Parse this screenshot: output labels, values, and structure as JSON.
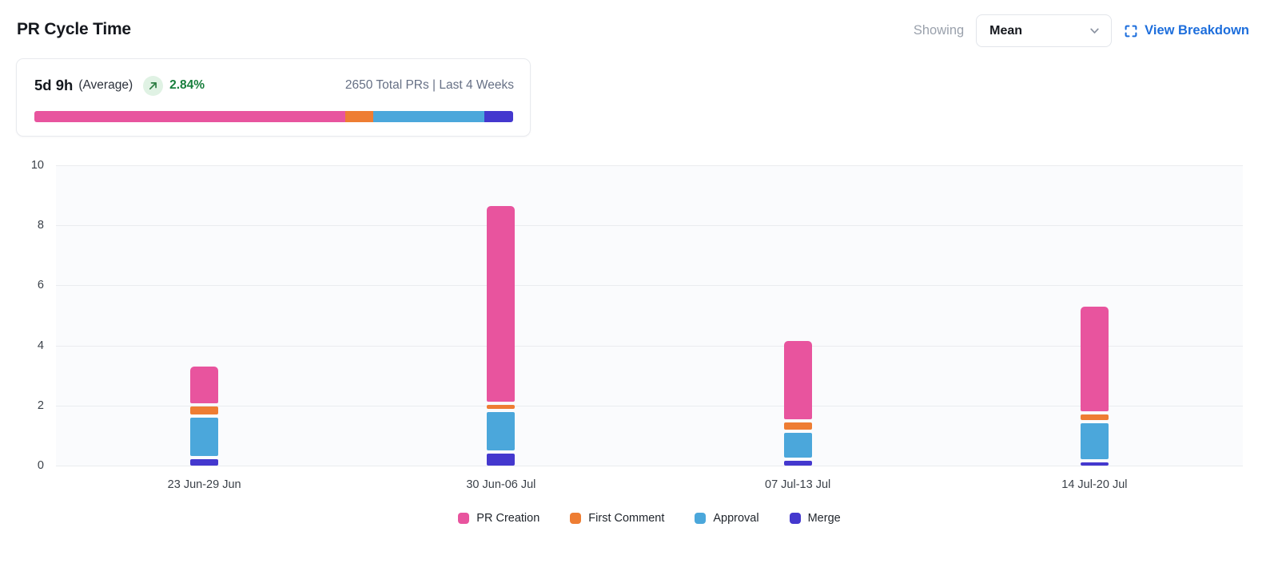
{
  "header": {
    "title": "PR Cycle Time",
    "showing_label": "Showing",
    "dropdown_value": "Mean",
    "view_breakdown_label": "View Breakdown"
  },
  "summary": {
    "value": "5d 9h",
    "value_suffix": "(Average)",
    "trend_direction": "up",
    "trend_pct": "2.84%",
    "meta": "2650 Total PRs | Last 4 Weeks",
    "distribution": [
      {
        "name": "PR Creation",
        "pct": 65.0,
        "color": "#e8549e"
      },
      {
        "name": "First Comment",
        "pct": 5.8,
        "color": "#ee7d33"
      },
      {
        "name": "Approval",
        "pct": 23.2,
        "color": "#4ba7db"
      },
      {
        "name": "Merge",
        "pct": 6.0,
        "color": "#4438ce"
      }
    ]
  },
  "chart_data": {
    "type": "bar",
    "stacked": true,
    "title": "PR Cycle Time",
    "categories": [
      "23 Jun-29 Jun",
      "30 Jun-06 Jul",
      "07 Jul-13 Jul",
      "14 Jul-20 Jul"
    ],
    "ylim": [
      0,
      10
    ],
    "yticks": [
      0,
      2,
      4,
      6,
      8,
      10
    ],
    "grid": true,
    "legend_position": "bottom",
    "stack_order": "bottom-to-top",
    "series": [
      {
        "name": "Merge",
        "color": "#4438ce",
        "values": [
          0.27,
          0.44,
          0.21,
          0.15
        ]
      },
      {
        "name": "Approval",
        "color": "#4ba7db",
        "values": [
          1.38,
          1.4,
          0.94,
          1.32
        ]
      },
      {
        "name": "First Comment",
        "color": "#ee7d33",
        "values": [
          0.38,
          0.24,
          0.33,
          0.28
        ]
      },
      {
        "name": "PR Creation",
        "color": "#e8549e",
        "values": [
          1.27,
          6.57,
          2.67,
          3.55
        ]
      }
    ],
    "totals": [
      3.3,
      8.65,
      4.15,
      5.3
    ],
    "legend_order": [
      "PR Creation",
      "First Comment",
      "Approval",
      "Merge"
    ]
  },
  "colors": {
    "accent_link": "#1d6edc",
    "trend_green": "#187f3d",
    "trend_badge_bg": "#e0f2e4",
    "plot_bg": "#fafbfd",
    "gridline": "#eaecef"
  }
}
